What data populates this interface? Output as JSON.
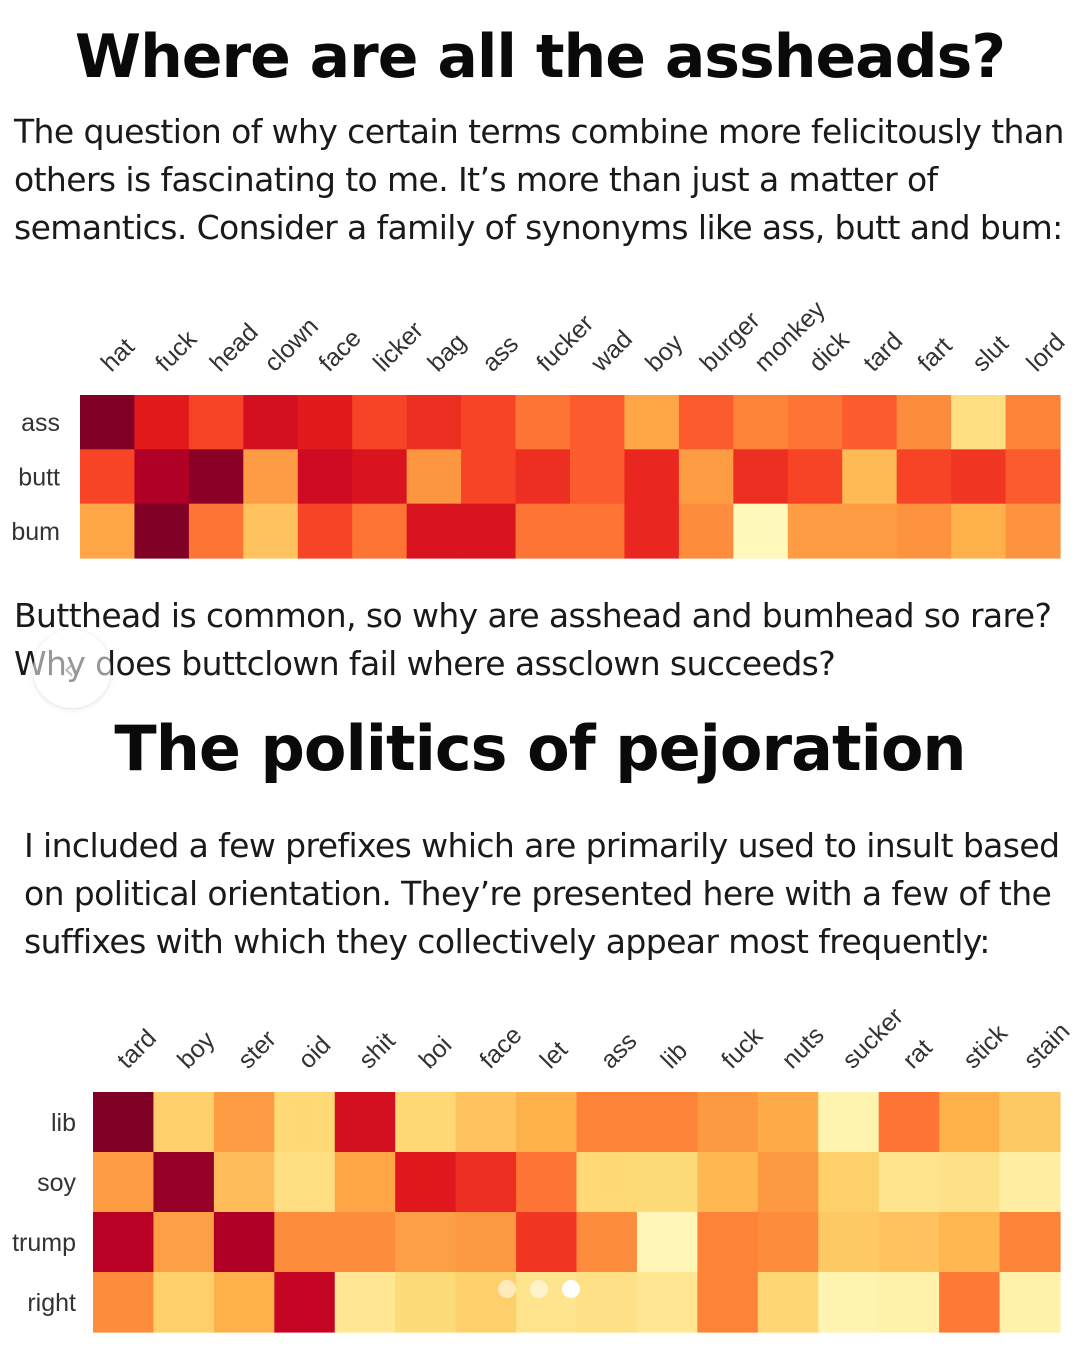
{
  "section1": {
    "title": "Where are all the assheads?",
    "intro": "The question of why certain terms combine more felicitously than others is fascinating to me. It’s more than just a matter of semantics. Consider a family of synonyms like ass, butt and bum:",
    "followup_line1": "Butthead is common, so why are asshead and bumhead so rare?",
    "followup_line2": "Why does buttclown fail where assclown succeeds?"
  },
  "section2": {
    "title": "The politics of pejoration",
    "intro": "I included a few prefixes which are primarily used to insult based on political orientation. They’re presented here with a few of the suffixes with which they collectively appear most frequently:"
  },
  "carousel": {
    "dots": 3,
    "active_index": 2,
    "prev_icon": "chevron-left-icon"
  },
  "colors": {
    "scale": [
      "#ffffcc",
      "#ffeda0",
      "#fed976",
      "#feb24c",
      "#fd8d3c",
      "#fc4e2a",
      "#e31a1c",
      "#bd0026",
      "#800026"
    ]
  },
  "chart_data": [
    {
      "type": "heatmap",
      "columns": [
        "hat",
        "fuck",
        "head",
        "clown",
        "face",
        "licker",
        "bag",
        "ass",
        "fucker",
        "wad",
        "boy",
        "burger",
        "monkey",
        "dick",
        "tard",
        "fart",
        "slut",
        "lord"
      ],
      "rows": [
        "ass",
        "butt",
        "bum"
      ],
      "values": [
        [
          1.0,
          0.75,
          0.65,
          0.8,
          0.75,
          0.65,
          0.7,
          0.65,
          0.55,
          0.6,
          0.42,
          0.6,
          0.52,
          0.55,
          0.6,
          0.5,
          0.22,
          0.52
        ],
        [
          0.65,
          0.9,
          0.98,
          0.45,
          0.82,
          0.78,
          0.47,
          0.65,
          0.7,
          0.6,
          0.72,
          0.45,
          0.7,
          0.65,
          0.35,
          0.65,
          0.68,
          0.6
        ],
        [
          0.42,
          1.0,
          0.55,
          0.32,
          0.65,
          0.55,
          0.78,
          0.78,
          0.55,
          0.55,
          0.72,
          0.5,
          0.05,
          0.45,
          0.45,
          0.48,
          0.38,
          0.48
        ]
      ]
    },
    {
      "type": "heatmap",
      "columns": [
        "tard",
        "boy",
        "ster",
        "oid",
        "shit",
        "boi",
        "face",
        "let",
        "ass",
        "lib",
        "fuck",
        "nuts",
        "sucker",
        "rat",
        "stick",
        "stain"
      ],
      "rows": [
        "lib",
        "soy",
        "trump",
        "right"
      ],
      "values": [
        [
          1.0,
          0.28,
          0.45,
          0.25,
          0.8,
          0.25,
          0.32,
          0.38,
          0.52,
          0.52,
          0.46,
          0.4,
          0.08,
          0.55,
          0.38,
          0.3
        ],
        [
          0.45,
          0.96,
          0.34,
          0.22,
          0.42,
          0.76,
          0.7,
          0.55,
          0.25,
          0.24,
          0.36,
          0.46,
          0.28,
          0.18,
          0.2,
          0.12
        ],
        [
          0.88,
          0.44,
          0.9,
          0.5,
          0.5,
          0.44,
          0.46,
          0.68,
          0.5,
          0.06,
          0.52,
          0.5,
          0.3,
          0.32,
          0.36,
          0.52
        ],
        [
          0.5,
          0.28,
          0.38,
          0.85,
          0.16,
          0.24,
          0.28,
          0.18,
          0.2,
          0.16,
          0.52,
          0.26,
          0.08,
          0.1,
          0.54,
          0.1
        ]
      ]
    }
  ]
}
